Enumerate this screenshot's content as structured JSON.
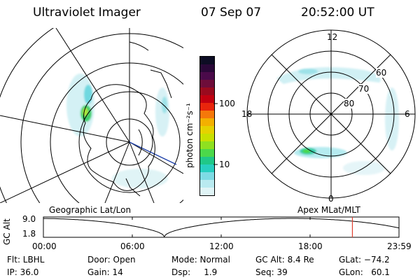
{
  "header": {
    "instrument": "Ultraviolet Imager",
    "date": "07 Sep 07",
    "time": "20:52:00 UT"
  },
  "left_map": {
    "label": "Geographic Lat/Lon"
  },
  "colorbar": {
    "unit_label": "photon cm⁻²s⁻¹",
    "ticks": [
      "100",
      "10"
    ],
    "colors": [
      "#0d0d24",
      "#2a0838",
      "#4a0a4a",
      "#6e0d3a",
      "#9a0a1e",
      "#c20010",
      "#e8250c",
      "#f5780a",
      "#f3b000",
      "#e5d200",
      "#c8e000",
      "#8fe020",
      "#4cd84a",
      "#20c888",
      "#28cfc0",
      "#7edbe4",
      "#b9eaf0",
      "#e0f4f6"
    ]
  },
  "right_map": {
    "label": "Apex MLat/MLT",
    "mlt_labels": {
      "top": "12",
      "left": "18",
      "right": "6",
      "bottom": "0"
    },
    "lat_labels": [
      "60",
      "70",
      "80"
    ]
  },
  "timeline": {
    "axis_label": "GC Alt",
    "y_ticks": [
      "9.0",
      "1.8"
    ],
    "x_ticks": [
      "00:00",
      "06:00",
      "12:00",
      "18:00",
      "23:59"
    ],
    "current_time_fraction": 0.869,
    "marker_color": "#e04030"
  },
  "info": {
    "row1": {
      "filter": "Flt: LBHL",
      "door": "Door: Open",
      "mode": "Mode: Normal",
      "gc_alt": "GC Alt: 8.4 Re",
      "glat": "GLat: −74.2"
    },
    "row2": {
      "ip": "IP: 36.0",
      "gain": "Gain: 14",
      "dsp": "Dsp:     1.9",
      "seq": "Seq: 39",
      "glon": "GLon:   60.1"
    }
  }
}
